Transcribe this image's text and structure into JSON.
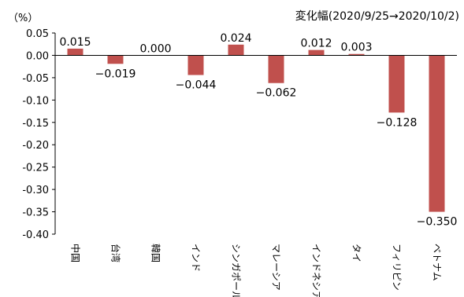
{
  "chart_data": {
    "type": "bar",
    "unit_label": "（%）",
    "subtitle": "変化幅(2020/9/25→2020/10/2)",
    "categories": [
      "中国",
      "台湾",
      "韓国",
      "インド",
      "シンガポール",
      "マレーシア",
      "インドネシア",
      "タイ",
      "フィリピン",
      "ベトナム"
    ],
    "values": [
      0.015,
      -0.019,
      0.0,
      -0.044,
      0.024,
      -0.062,
      0.012,
      0.003,
      -0.128,
      -0.35
    ],
    "value_labels": [
      "0.015",
      "−0.019",
      "0.000",
      "−0.044",
      "0.024",
      "−0.062",
      "0.012",
      "0.003",
      "−0.128",
      "−0.350"
    ],
    "ylim": [
      -0.4,
      0.05
    ],
    "yticks": [
      0.05,
      0.0,
      -0.05,
      -0.1,
      -0.15,
      -0.2,
      -0.25,
      -0.3,
      -0.35,
      -0.4
    ],
    "ytick_labels": [
      "0.05",
      "0.00",
      "-0.05",
      "-0.10",
      "-0.15",
      "-0.20",
      "-0.25",
      "-0.30",
      "-0.35",
      "-0.40"
    ],
    "bar_color": "#c0504d",
    "grid": false,
    "legend": "none"
  }
}
